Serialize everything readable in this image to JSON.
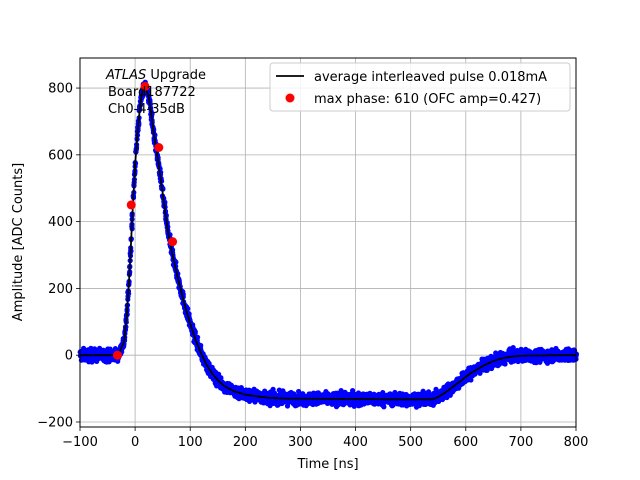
{
  "chart_data": {
    "type": "line",
    "xlabel": "Time [ns]",
    "ylabel": "Amplitude [ADC Counts]",
    "xlim": [
      -100,
      800
    ],
    "ylim": [
      -215,
      890
    ],
    "xticks": [
      -100,
      0,
      100,
      200,
      300,
      400,
      500,
      600,
      700,
      800
    ],
    "yticks": [
      -200,
      0,
      200,
      400,
      600,
      800
    ],
    "grid": true,
    "legend_placement": "top-right",
    "annotation": {
      "line1_italic": "ATLAS",
      "line1_rest": " Upgrade",
      "line2": "Board187722",
      "line3": "Ch0-4-35dB"
    },
    "colors": {
      "samples": "#0000ff",
      "average": "#000000",
      "max_phase": "#ff0000",
      "grid": "#b0b0b0"
    },
    "series": [
      {
        "name": "average interleaved pulse 0.018mA",
        "style": "line",
        "x": [
          -100,
          -60,
          -40,
          -30,
          -20,
          -15,
          -10,
          -5,
          0,
          5,
          10,
          15,
          20,
          25,
          30,
          35,
          40,
          45,
          50,
          55,
          60,
          65,
          70,
          75,
          80,
          90,
          100,
          110,
          120,
          130,
          140,
          150,
          160,
          170,
          180,
          200,
          220,
          240,
          260,
          280,
          300,
          350,
          400,
          450,
          500,
          520,
          540,
          550,
          560,
          570,
          580,
          590,
          600,
          610,
          620,
          630,
          640,
          650,
          660,
          670,
          680,
          690,
          700,
          720,
          740,
          760,
          800
        ],
        "y": [
          0,
          0,
          0,
          2,
          40,
          120,
          250,
          420,
          570,
          680,
          760,
          805,
          800,
          770,
          715,
          650,
          600,
          545,
          485,
          425,
          365,
          325,
          285,
          250,
          215,
          150,
          95,
          45,
          5,
          -30,
          -55,
          -75,
          -90,
          -100,
          -108,
          -118,
          -123,
          -127,
          -129,
          -130,
          -130,
          -131,
          -131,
          -132,
          -132,
          -132,
          -132,
          -125,
          -115,
          -103,
          -90,
          -78,
          -65,
          -53,
          -43,
          -33,
          -25,
          -18,
          -12,
          -8,
          -5,
          -3,
          -2,
          -1,
          -1,
          0,
          0
        ]
      },
      {
        "name": "max phase: 610 (OFC amp=0.427)",
        "style": "markers",
        "x": [
          -32,
          -7,
          18,
          43,
          68
        ],
        "y": [
          0,
          450,
          805,
          622,
          340
        ]
      }
    ]
  }
}
